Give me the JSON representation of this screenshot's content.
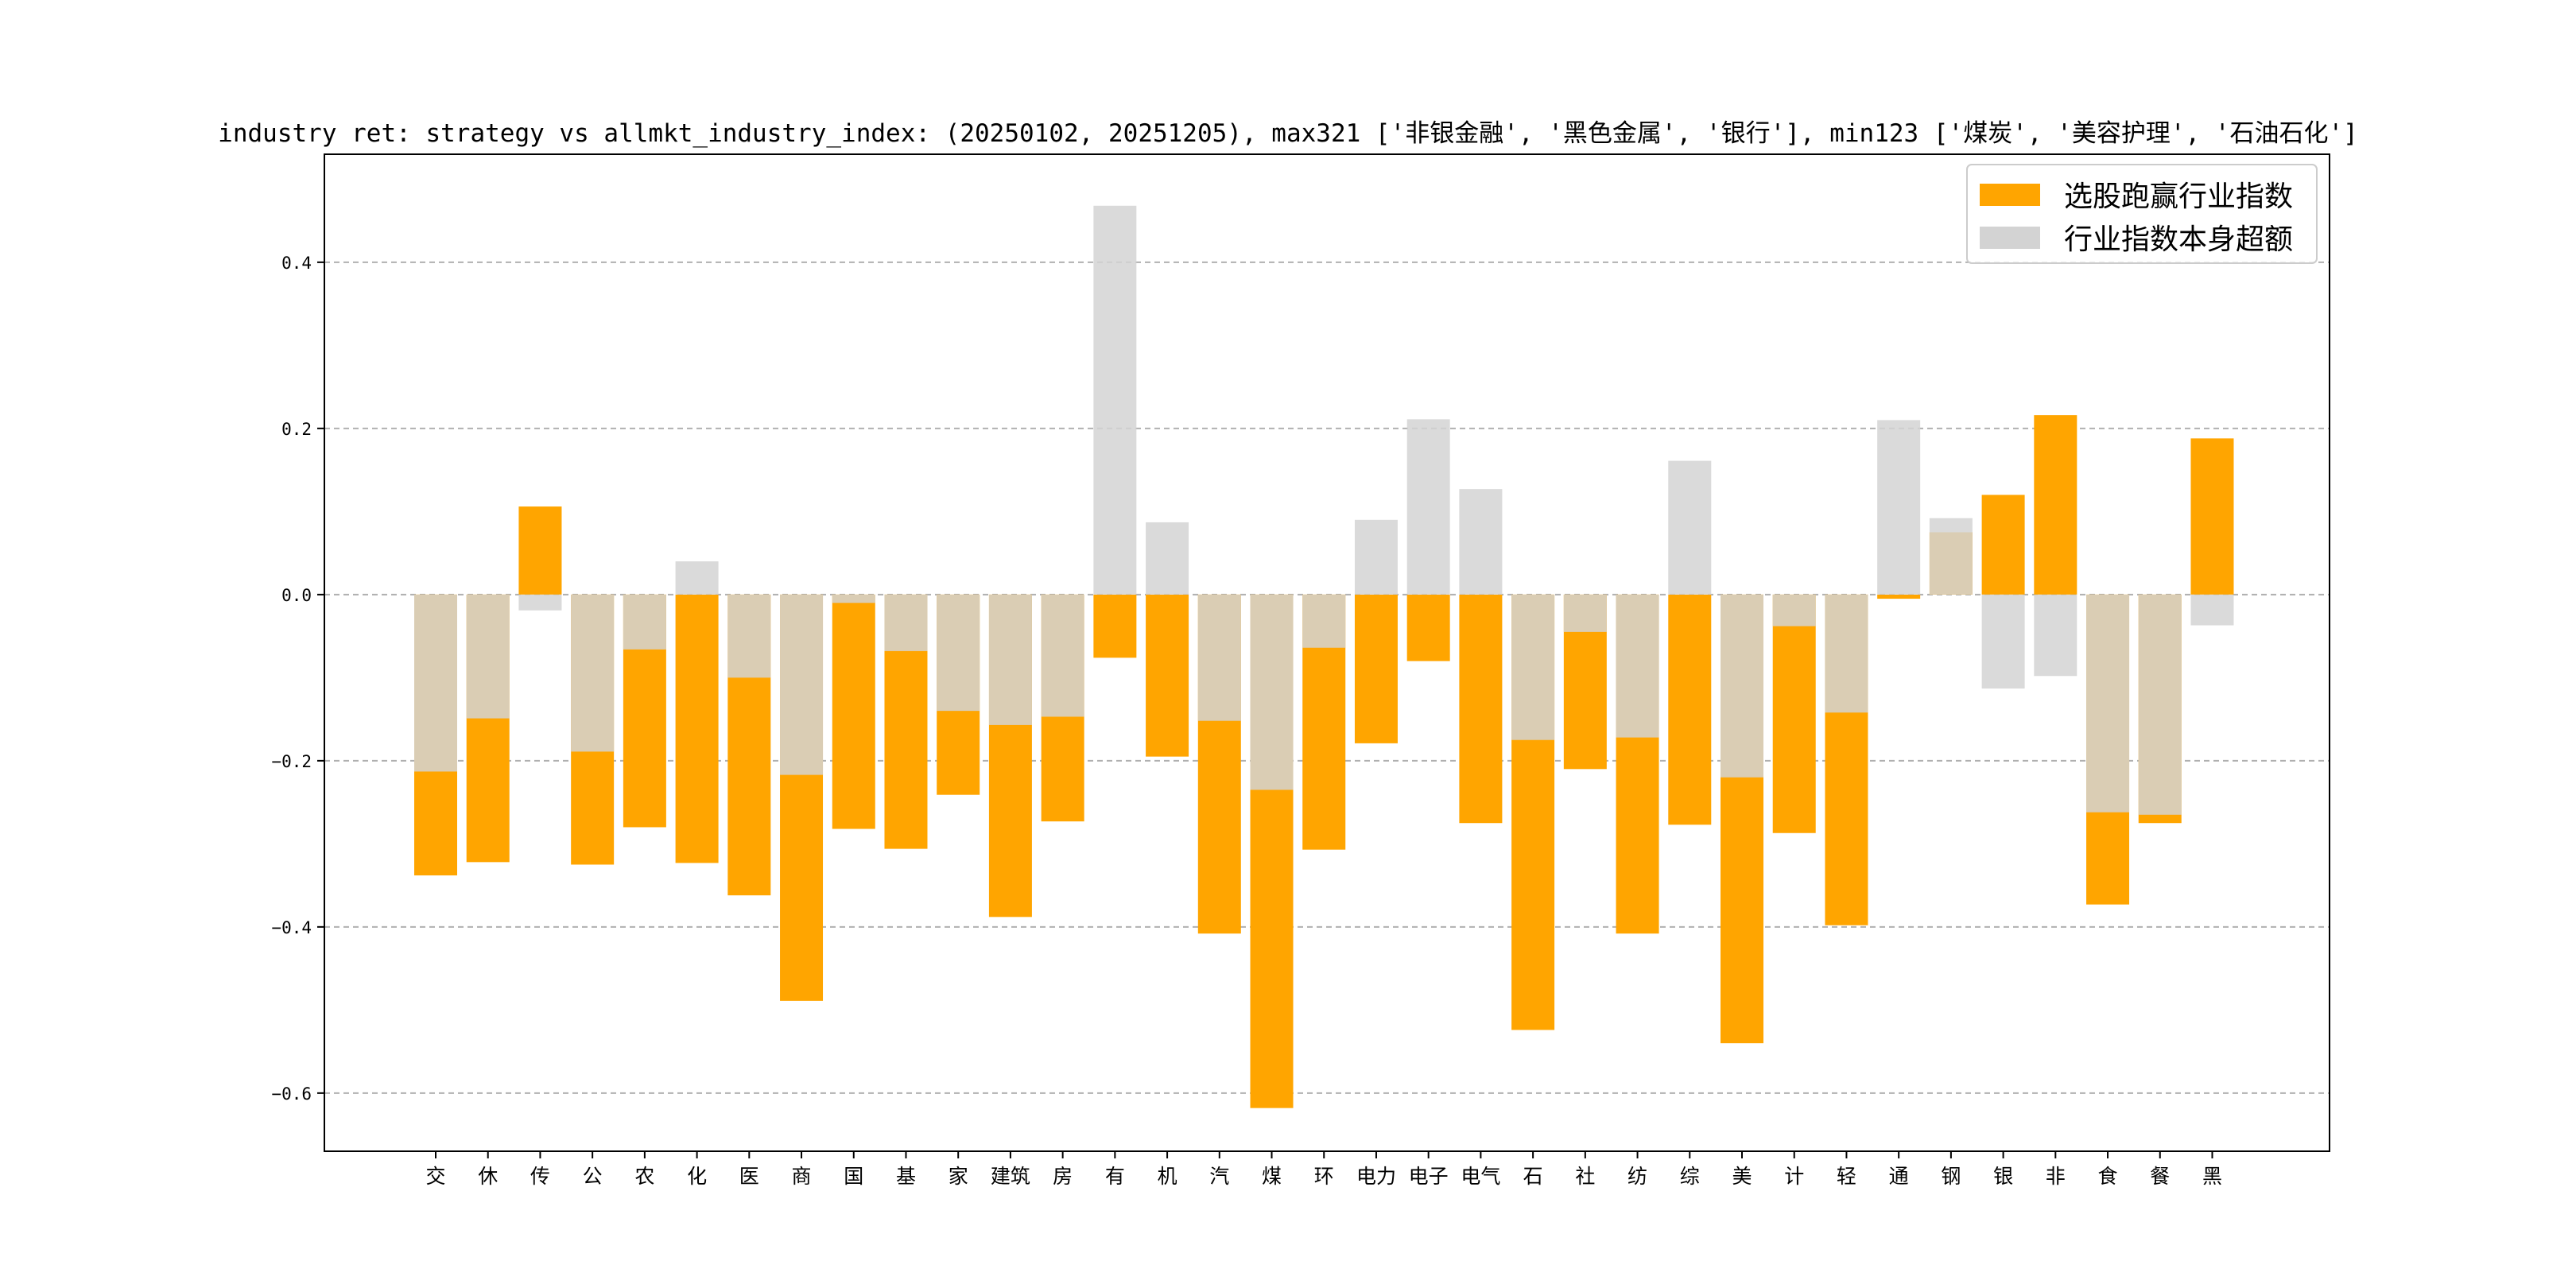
{
  "chart_data": {
    "type": "bar",
    "title": "industry ret: strategy vs allmkt_industry_index: (20250102, 20251205), max321 ['非银金融', '黑色金属', '银行'], min123 ['煤炭', '美容护理', '石油石化']",
    "xlabel": "",
    "ylabel": "",
    "ylim": [
      -0.67,
      0.53
    ],
    "yticks": [
      0.4,
      0.2,
      0.0,
      -0.2,
      -0.4,
      -0.6
    ],
    "ytick_labels": [
      "0.4",
      "0.2",
      "0.0",
      "−0.2",
      "−0.4",
      "−0.6"
    ],
    "grid": "y-dashed",
    "legend_position": "top-right",
    "categories": [
      "交",
      "休",
      "传",
      "公",
      "农",
      "化",
      "医",
      "商",
      "国",
      "基",
      "家",
      "建筑",
      "房",
      "有",
      "机",
      "汽",
      "煤",
      "环",
      "电力",
      "电子",
      "电气",
      "石",
      "社",
      "纺",
      "综",
      "美",
      "计",
      "轻",
      "通",
      "钢",
      "银",
      "非",
      "食",
      "餐",
      "黑"
    ],
    "series": [
      {
        "name": "选股跑赢行业指数",
        "color": "#FFA500",
        "values": [
          -0.338,
          -0.322,
          0.106,
          -0.325,
          -0.28,
          -0.323,
          -0.362,
          -0.489,
          -0.282,
          -0.306,
          -0.241,
          -0.388,
          -0.273,
          -0.076,
          -0.195,
          -0.408,
          -0.618,
          -0.307,
          -0.179,
          -0.08,
          -0.275,
          -0.524,
          -0.21,
          -0.408,
          -0.277,
          -0.54,
          -0.287,
          -0.398,
          -0.005,
          0.075,
          0.12,
          0.216,
          -0.373,
          -0.275,
          0.188
        ]
      },
      {
        "name": "行业指数本身超额",
        "color": "#D3D3D3",
        "values": [
          -0.213,
          -0.149,
          -0.019,
          -0.189,
          -0.066,
          0.04,
          -0.1,
          -0.217,
          -0.01,
          -0.068,
          -0.14,
          -0.157,
          -0.147,
          0.468,
          0.087,
          -0.152,
          -0.235,
          -0.064,
          0.09,
          0.211,
          0.127,
          -0.175,
          -0.045,
          -0.172,
          0.161,
          -0.22,
          -0.038,
          -0.142,
          0.21,
          0.092,
          -0.113,
          -0.098,
          -0.262,
          -0.265,
          -0.037
        ]
      }
    ]
  }
}
